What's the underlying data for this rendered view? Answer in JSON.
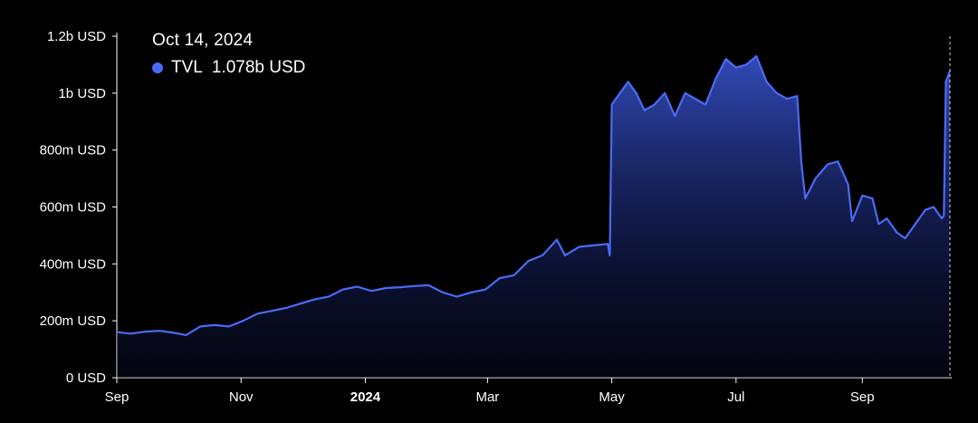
{
  "chart_data": {
    "type": "area",
    "title": "",
    "xlabel": "",
    "ylabel": "",
    "ylim": [
      0,
      1200000000
    ],
    "grid": false,
    "accent_color": "#4a6bf5",
    "y_ticks": [
      {
        "value": 0,
        "label": "0 USD"
      },
      {
        "value": 200000000,
        "label": "200m USD"
      },
      {
        "value": 400000000,
        "label": "400m USD"
      },
      {
        "value": 600000000,
        "label": "600m USD"
      },
      {
        "value": 800000000,
        "label": "800m USD"
      },
      {
        "value": 1000000000,
        "label": "1b USD"
      },
      {
        "value": 1200000000,
        "label": "1.2b USD"
      }
    ],
    "x_ticks": [
      {
        "date": "2023-09-01",
        "label": "Sep",
        "bold": false
      },
      {
        "date": "2023-11-01",
        "label": "Nov",
        "bold": false
      },
      {
        "date": "2024-01-01",
        "label": "2024",
        "bold": true
      },
      {
        "date": "2024-03-01",
        "label": "Mar",
        "bold": false
      },
      {
        "date": "2024-05-01",
        "label": "May",
        "bold": false
      },
      {
        "date": "2024-07-01",
        "label": "Jul",
        "bold": false
      },
      {
        "date": "2024-09-01",
        "label": "Sep",
        "bold": false
      }
    ],
    "x_range": [
      "2023-09-01",
      "2024-10-14"
    ],
    "series": [
      {
        "name": "TVL",
        "points": [
          [
            "2023-09-01",
            160000000
          ],
          [
            "2023-09-08",
            155000000
          ],
          [
            "2023-09-15",
            162000000
          ],
          [
            "2023-09-22",
            165000000
          ],
          [
            "2023-09-29",
            158000000
          ],
          [
            "2023-10-05",
            150000000
          ],
          [
            "2023-10-12",
            180000000
          ],
          [
            "2023-10-19",
            185000000
          ],
          [
            "2023-10-26",
            180000000
          ],
          [
            "2023-11-02",
            200000000
          ],
          [
            "2023-11-09",
            225000000
          ],
          [
            "2023-11-16",
            235000000
          ],
          [
            "2023-11-23",
            245000000
          ],
          [
            "2023-11-30",
            260000000
          ],
          [
            "2023-12-07",
            275000000
          ],
          [
            "2023-12-14",
            285000000
          ],
          [
            "2023-12-21",
            310000000
          ],
          [
            "2023-12-28",
            320000000
          ],
          [
            "2024-01-04",
            305000000
          ],
          [
            "2024-01-11",
            315000000
          ],
          [
            "2024-01-18",
            318000000
          ],
          [
            "2024-01-25",
            322000000
          ],
          [
            "2024-02-01",
            325000000
          ],
          [
            "2024-02-08",
            300000000
          ],
          [
            "2024-02-15",
            285000000
          ],
          [
            "2024-02-22",
            300000000
          ],
          [
            "2024-02-29",
            310000000
          ],
          [
            "2024-03-07",
            350000000
          ],
          [
            "2024-03-14",
            360000000
          ],
          [
            "2024-03-21",
            410000000
          ],
          [
            "2024-03-28",
            430000000
          ],
          [
            "2024-04-04",
            485000000
          ],
          [
            "2024-04-08",
            430000000
          ],
          [
            "2024-04-15",
            460000000
          ],
          [
            "2024-04-22",
            465000000
          ],
          [
            "2024-04-29",
            470000000
          ],
          [
            "2024-04-30",
            430000000
          ],
          [
            "2024-05-01",
            960000000
          ],
          [
            "2024-05-05",
            1000000000
          ],
          [
            "2024-05-09",
            1040000000
          ],
          [
            "2024-05-13",
            1000000000
          ],
          [
            "2024-05-17",
            940000000
          ],
          [
            "2024-05-22",
            960000000
          ],
          [
            "2024-05-27",
            1000000000
          ],
          [
            "2024-06-01",
            920000000
          ],
          [
            "2024-06-06",
            1000000000
          ],
          [
            "2024-06-11",
            980000000
          ],
          [
            "2024-06-16",
            960000000
          ],
          [
            "2024-06-21",
            1050000000
          ],
          [
            "2024-06-26",
            1120000000
          ],
          [
            "2024-07-01",
            1090000000
          ],
          [
            "2024-07-06",
            1100000000
          ],
          [
            "2024-07-11",
            1130000000
          ],
          [
            "2024-07-16",
            1040000000
          ],
          [
            "2024-07-21",
            1000000000
          ],
          [
            "2024-07-26",
            980000000
          ],
          [
            "2024-07-31",
            990000000
          ],
          [
            "2024-08-02",
            760000000
          ],
          [
            "2024-08-04",
            630000000
          ],
          [
            "2024-08-09",
            700000000
          ],
          [
            "2024-08-15",
            750000000
          ],
          [
            "2024-08-20",
            760000000
          ],
          [
            "2024-08-25",
            680000000
          ],
          [
            "2024-08-27",
            550000000
          ],
          [
            "2024-09-01",
            640000000
          ],
          [
            "2024-09-06",
            630000000
          ],
          [
            "2024-09-09",
            540000000
          ],
          [
            "2024-09-13",
            560000000
          ],
          [
            "2024-09-18",
            510000000
          ],
          [
            "2024-09-22",
            490000000
          ],
          [
            "2024-09-27",
            540000000
          ],
          [
            "2024-10-02",
            590000000
          ],
          [
            "2024-10-06",
            600000000
          ],
          [
            "2024-10-10",
            560000000
          ],
          [
            "2024-10-11",
            570000000
          ],
          [
            "2024-10-12",
            1040000000
          ],
          [
            "2024-10-14",
            1078000000
          ]
        ]
      }
    ]
  },
  "tooltip": {
    "date": "Oct 14, 2024",
    "series_name": "TVL",
    "value": "1.078b USD",
    "dot_color": "#4a6bf5"
  }
}
